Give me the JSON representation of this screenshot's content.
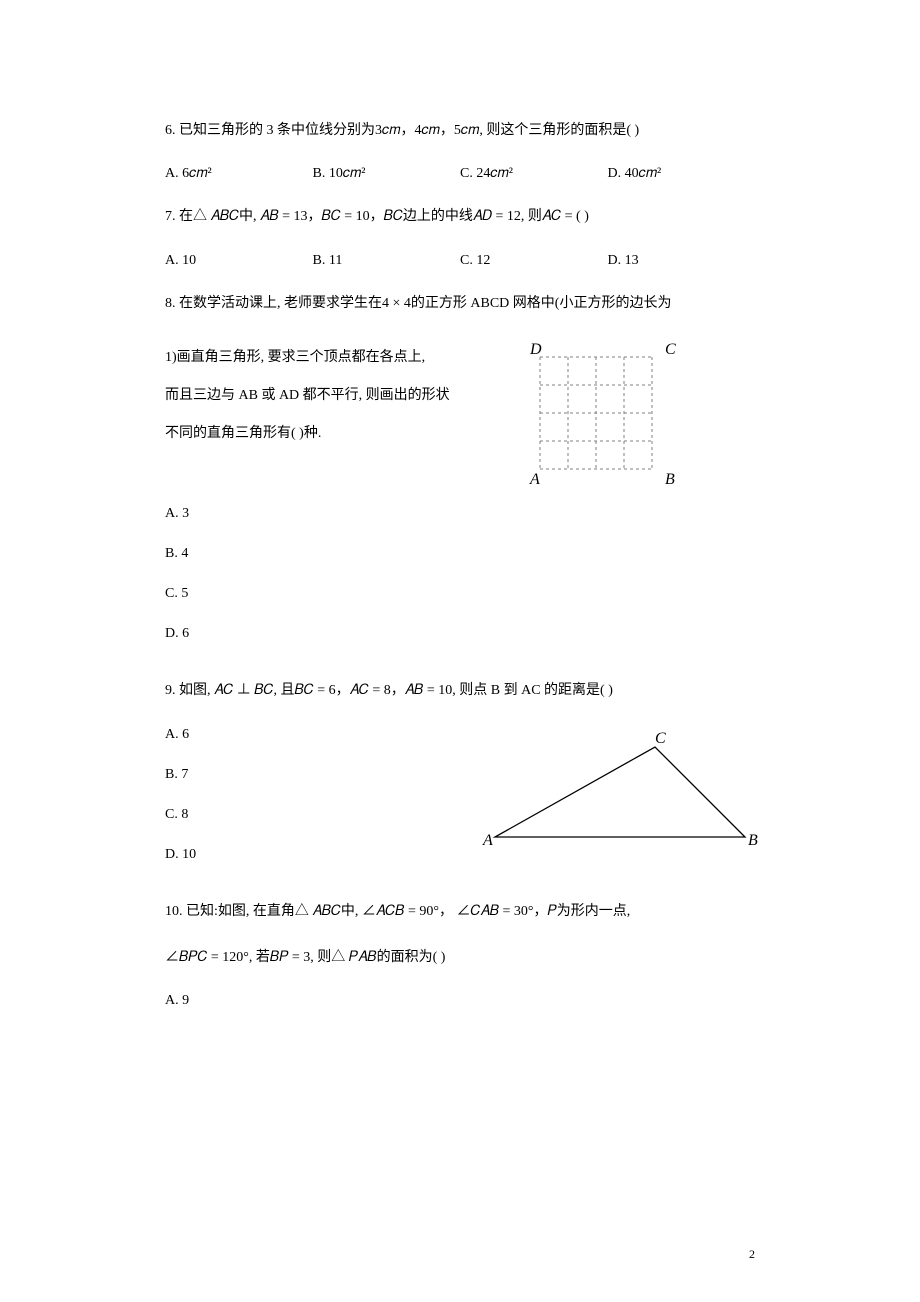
{
  "page_number": "2",
  "q6": {
    "stem": "6.    已知三角形的 3 条中位线分别为3𝑐𝑚，4𝑐𝑚，5𝑐𝑚, 则这个三角形的面积是(       )",
    "a": "A.  6𝑐𝑚²",
    "b": "B.  10𝑐𝑚²",
    "c": "C.  24𝑐𝑚²",
    "d": "D.  40𝑐𝑚²"
  },
  "q7": {
    "stem": "7.    在△ 𝐴𝐵𝐶中, 𝐴𝐵 = 13，𝐵𝐶 = 10，𝐵𝐶边上的中线𝐴𝐷 = 12, 则𝐴𝐶 = (       )",
    "a": "A.  10",
    "b": "B.  11",
    "c": "C.  12",
    "d": "D.  13"
  },
  "q8": {
    "stem": "8.    在数学活动课上, 老师要求学生在4 × 4的正方形 ABCD 网格中(小正方形的边长为",
    "line1": "1)画直角三角形, 要求三个顶点都在各点上,",
    "line2": "而且三边与 AB 或 AD 都不平行, 则画出的形状",
    "line3": "不同的直角三角形有(       )种.",
    "a": "A.  3",
    "b": "B.  4",
    "c": "C.  5",
    "d": "D.  6",
    "fig": {
      "D": "D",
      "C": "C",
      "A": "A",
      "B": "B",
      "stroke": "#808080",
      "dash": "3,3"
    }
  },
  "q9": {
    "stem": "9.    如图, 𝐴𝐶 ⊥ 𝐵𝐶, 且𝐵𝐶 = 6，𝐴𝐶 = 8，𝐴𝐵 = 10, 则点 B 到 AC 的距离是(       )",
    "a": "A.  6",
    "b": "B.  7",
    "c": "C.  8",
    "d": "D.  10",
    "fig": {
      "A": "A",
      "B": "B",
      "C": "C",
      "stroke": "#000000"
    }
  },
  "q10": {
    "stem1": "10.   已知:如图, 在直角△ 𝐴𝐵𝐶中,  ∠𝐴𝐶𝐵 = 90°， ∠𝐶𝐴𝐵 = 30°，𝑃为形内一点,",
    "stem2": "∠𝐵𝑃𝐶 = 120°, 若𝐵𝑃 = 3, 则△ 𝑃𝐴𝐵的面积为(       )",
    "a": "A.  9"
  }
}
